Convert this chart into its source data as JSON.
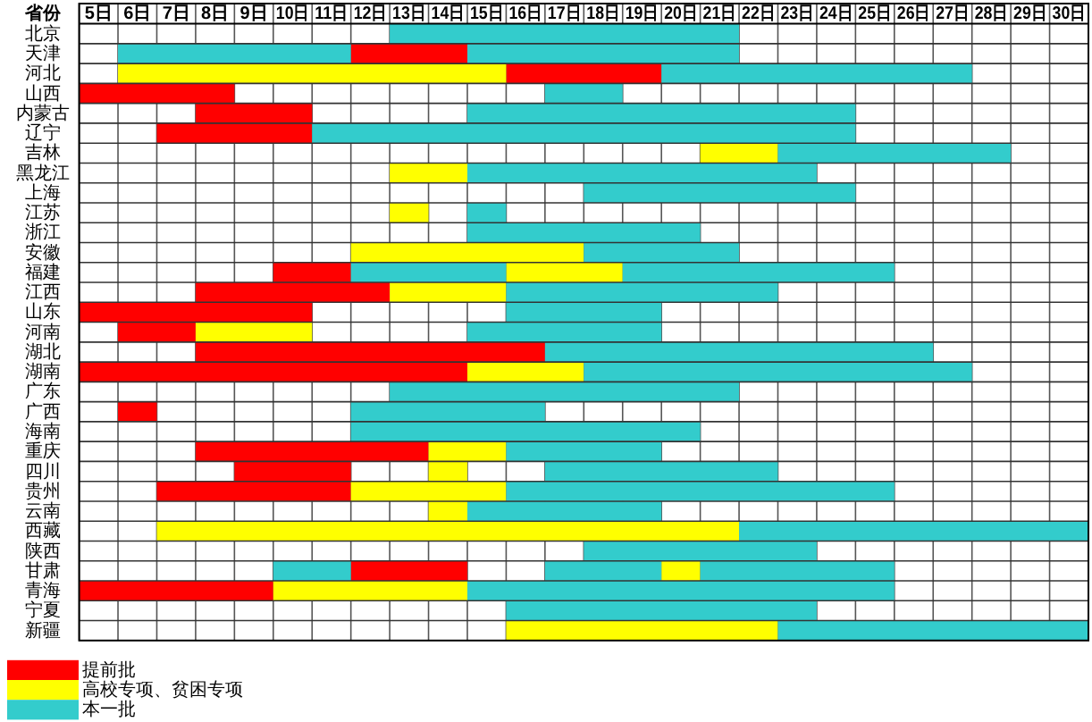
{
  "chart_data": {
    "type": "bar",
    "orientation": "horizontal",
    "ylabel": "省份",
    "categories": [
      "北京",
      "天津",
      "河北",
      "山西",
      "内蒙古",
      "辽宁",
      "吉林",
      "黑龙江",
      "上海",
      "江苏",
      "浙江",
      "安徽",
      "福建",
      "江西",
      "山东",
      "河南",
      "湖北",
      "湖南",
      "广东",
      "广西",
      "海南",
      "重庆",
      "四川",
      "贵州",
      "云南",
      "西藏",
      "陕西",
      "甘肃",
      "青海",
      "宁夏",
      "新疆"
    ],
    "xlim": [
      5,
      31
    ],
    "xticks": [
      {
        "value": 5.5,
        "label": "5日"
      },
      {
        "value": 6.5,
        "label": "6日"
      },
      {
        "value": 7.5,
        "label": "7日"
      },
      {
        "value": 8.5,
        "label": "8日"
      },
      {
        "value": 9.5,
        "label": "9日"
      },
      {
        "value": 10.5,
        "label": "10日"
      },
      {
        "value": 11.5,
        "label": "11日"
      },
      {
        "value": 12.5,
        "label": "12日"
      },
      {
        "value": 13.5,
        "label": "13日"
      },
      {
        "value": 14.5,
        "label": "14日"
      },
      {
        "value": 15.5,
        "label": "15日"
      },
      {
        "value": 16.5,
        "label": "16日"
      },
      {
        "value": 17.5,
        "label": "17日"
      },
      {
        "value": 18.5,
        "label": "18日"
      },
      {
        "value": 19.5,
        "label": "19日"
      },
      {
        "value": 20.5,
        "label": "20日"
      },
      {
        "value": 21.5,
        "label": "21日"
      },
      {
        "value": 22.5,
        "label": "22日"
      },
      {
        "value": 23.5,
        "label": "23日"
      },
      {
        "value": 24.5,
        "label": "24日"
      },
      {
        "value": 25.5,
        "label": "25日"
      },
      {
        "value": 26.5,
        "label": "26日"
      },
      {
        "value": 27.5,
        "label": "27日"
      },
      {
        "value": 28.5,
        "label": "28日"
      },
      {
        "value": 29.5,
        "label": "29日"
      },
      {
        "value": 30.5,
        "label": "30日"
      }
    ],
    "grid": true,
    "legend": "bottom left",
    "series": [
      {
        "name": "提前批",
        "color": "#ff0000",
        "base": [
          null,
          12,
          16,
          5,
          8,
          7,
          null,
          null,
          null,
          null,
          null,
          null,
          10,
          8,
          5,
          6,
          8,
          5,
          null,
          6,
          null,
          8,
          9,
          7,
          null,
          null,
          null,
          12,
          5,
          null,
          null
        ],
        "values": [
          null,
          3,
          4,
          4,
          3,
          4,
          null,
          null,
          null,
          null,
          null,
          null,
          2,
          5,
          6,
          2,
          9,
          10,
          null,
          1,
          null,
          6,
          3,
          5,
          null,
          null,
          null,
          3,
          5,
          null,
          null
        ]
      },
      {
        "name": "高校专项、贫困专项",
        "color": "#ffff00",
        "base": [
          null,
          null,
          6,
          null,
          null,
          null,
          21,
          13,
          null,
          13,
          null,
          12,
          16,
          13,
          null,
          8,
          null,
          15,
          null,
          null,
          null,
          14,
          14,
          12,
          14,
          7,
          null,
          20,
          10,
          null,
          16
        ],
        "values": [
          null,
          null,
          10,
          null,
          null,
          null,
          2,
          2,
          null,
          1,
          null,
          6,
          3,
          3,
          null,
          3,
          null,
          3,
          null,
          null,
          null,
          2,
          1,
          4,
          1,
          15,
          null,
          1,
          5,
          null,
          7
        ]
      },
      {
        "name": "本一批",
        "color": "#33cccc",
        "base": [
          13,
          6,
          20,
          17,
          15,
          11,
          23,
          15,
          18,
          15,
          15,
          18,
          12,
          16,
          16,
          15,
          17,
          18,
          13,
          12,
          12,
          16,
          17,
          16,
          15,
          22,
          18,
          10,
          15,
          16,
          23
        ],
        "values": [
          9,
          6,
          8,
          2,
          10,
          14,
          6,
          9,
          7,
          1,
          6,
          4,
          4,
          7,
          4,
          5,
          10,
          10,
          9,
          5,
          9,
          4,
          6,
          10,
          5,
          9,
          6,
          2,
          11,
          8,
          8
        ]
      },
      {
        "color": "#33cccc",
        "base": [
          null,
          15,
          null,
          null,
          null,
          null,
          null,
          null,
          null,
          null,
          null,
          null,
          19,
          null,
          null,
          null,
          null,
          null,
          null,
          null,
          null,
          null,
          null,
          null,
          null,
          null,
          null,
          17,
          null,
          null,
          null
        ],
        "values": [
          null,
          7,
          null,
          null,
          null,
          null,
          null,
          null,
          null,
          null,
          null,
          null,
          7,
          null,
          null,
          null,
          null,
          null,
          null,
          null,
          null,
          null,
          null,
          null,
          null,
          null,
          null,
          3,
          null,
          null,
          null
        ]
      },
      {
        "color": "#33cccc",
        "base": [
          null,
          null,
          null,
          null,
          null,
          null,
          null,
          null,
          null,
          null,
          null,
          null,
          null,
          null,
          null,
          null,
          null,
          null,
          null,
          null,
          null,
          null,
          null,
          null,
          null,
          null,
          null,
          21,
          null,
          null,
          null
        ],
        "values": [
          null,
          null,
          null,
          null,
          null,
          null,
          null,
          null,
          null,
          null,
          null,
          null,
          null,
          null,
          null,
          null,
          null,
          null,
          null,
          null,
          null,
          null,
          null,
          null,
          null,
          null,
          null,
          5,
          null,
          null,
          null
        ]
      }
    ]
  }
}
